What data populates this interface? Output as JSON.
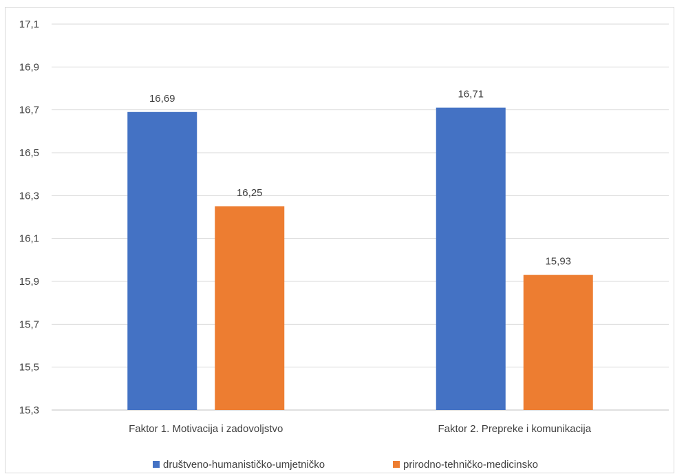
{
  "chart_data": {
    "type": "bar",
    "categories": [
      "Faktor 1. Motivacija i zadovoljstvo",
      "Faktor 2. Prepreke i komunikacija"
    ],
    "series": [
      {
        "name": "društveno-humanističko-umjetničko",
        "values": [
          16.69,
          16.71
        ],
        "labels": [
          "16,69",
          "16,71"
        ],
        "color": "#4472c4"
      },
      {
        "name": "prirodno-tehničko-medicinsko",
        "values": [
          16.25,
          15.93
        ],
        "labels": [
          "16,25",
          "15,93"
        ],
        "color": "#ed7d31"
      }
    ],
    "ylim": [
      15.3,
      17.1
    ],
    "yticks": [
      "15,3",
      "15,5",
      "15,7",
      "15,9",
      "16,1",
      "16,3",
      "16,5",
      "16,7",
      "16,9",
      "17,1"
    ],
    "grid": true,
    "legend": "bottom"
  }
}
